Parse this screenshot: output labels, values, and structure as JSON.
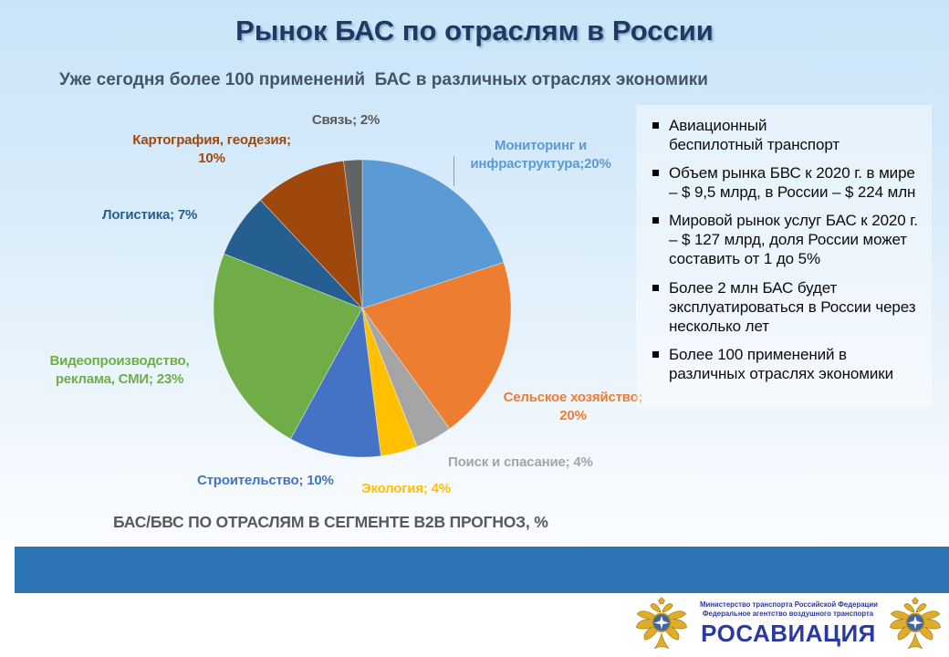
{
  "slide": {
    "title": "Рынок БАС по отраслям в России",
    "subtitle": "Уже сегодня более 100 применений  БАС в различных отраслях экономики",
    "caption": "БАС/БВС ПО ОТРАСЛЯМ В СЕГМЕНТЕ В2В ПРОГНОЗ, %"
  },
  "colors": {
    "title": "#1F3864",
    "subtitle": "#44546A",
    "caption": "#595959",
    "footer_band": "#2E75B6",
    "agency_blue": "#2A3AA0",
    "eagle_gold": "#E0AC2A"
  },
  "chart_data": {
    "type": "pie",
    "title": "БАС/БВС ПО ОТРАСЛЯМ В СЕГМЕНТЕ В2В ПРОГНОЗ, %",
    "units": "%",
    "start_angle_deg": 0,
    "direction": "clockwise",
    "legend_position": "outside-labels",
    "slices": [
      {
        "label": "Мониторинг и инфраструктура",
        "value": 20,
        "color": "#5B9BD5"
      },
      {
        "label": "Сельское хозяйство",
        "value": 20,
        "color": "#ED7D31"
      },
      {
        "label": "Поиск и спасание",
        "value": 4,
        "color": "#A5A5A5"
      },
      {
        "label": "Экология",
        "value": 4,
        "color": "#FFC000"
      },
      {
        "label": "Строительство",
        "value": 10,
        "color": "#4472C4"
      },
      {
        "label": "Видеопроизводство, реклама, СМИ",
        "value": 23,
        "color": "#70AD47"
      },
      {
        "label": "Логистика",
        "value": 7,
        "color": "#255E91"
      },
      {
        "label": "Картография, геодезия",
        "value": 10,
        "color": "#9E480E"
      },
      {
        "label": "Связь",
        "value": 2,
        "color": "#636363"
      }
    ]
  },
  "pie_labels": [
    {
      "text": "Связь; 2%",
      "color": "#595959"
    },
    {
      "text": "Картография, геодезия;\n10%",
      "color": "#9E480E"
    },
    {
      "text": "Мониторинг и\nинфраструктура;20%",
      "color": "#5B9BD5"
    },
    {
      "text": "Логистика; 7%",
      "color": "#255E91"
    },
    {
      "text": "Видеопроизводство,\nреклама, СМИ; 23%",
      "color": "#70AD47"
    },
    {
      "text": "Сельское хозяйство;\n20%",
      "color": "#ED7D31"
    },
    {
      "text": "Поиск и спасание; 4%",
      "color": "#A5A5A5"
    },
    {
      "text": "Экология; 4%",
      "color": "#FFC000"
    },
    {
      "text": "Строительство; 10%",
      "color": "#4472C4"
    }
  ],
  "panel": {
    "bullets": [
      "Авиационный\nбеспилотный транспорт",
      "Объем рынка БВС к 2020 г. в мире\n– $ 9,5 млрд, в России – $ 224 млн",
      "Мировой рынок услуг БАС  к 2020 г. – $ 127 млрд, доля России может составить от 1 до 5%",
      "Более 2 млн  БАС  будет эксплуатироваться в России через несколько лет",
      "Более 100 применений в различных отраслях экономики"
    ]
  },
  "footer": {
    "ministry_line1": "Министерство транспорта Российской Федерации",
    "ministry_line2": "Федеральное агентство воздушного транспорта",
    "agency_name": "РОСАВИАЦИЯ"
  }
}
